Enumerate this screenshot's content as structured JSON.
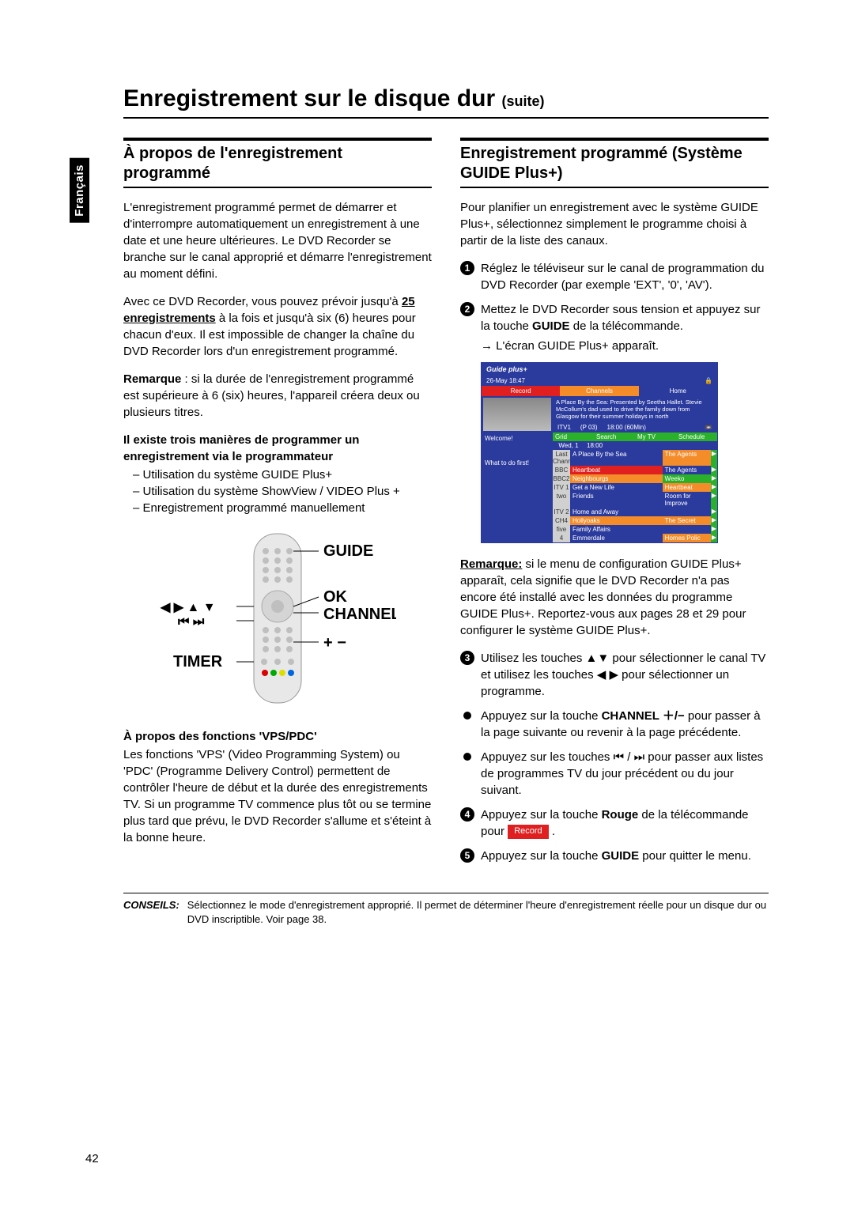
{
  "page_number": "42",
  "language_tab": "Français",
  "main_title": "Enregistrement sur le disque dur",
  "main_title_suffix": "(suite)",
  "colors": {
    "text": "#000000",
    "background": "#ffffff",
    "accent_blue": "#2a3a9d",
    "accent_red": "#e02020",
    "accent_orange": "#f48c2a",
    "accent_green": "#2ab02a"
  },
  "left": {
    "section_title": "À propos de l'enregistrement programmé",
    "para1": "L'enregistrement programmé permet de démarrer et d'interrompre automatiquement un enregistrement à une date et une heure ultérieures. Le DVD Recorder se branche sur le canal approprié et démarre l'enregistrement au moment défini.",
    "para2_pre": "Avec ce DVD Recorder, vous pouvez prévoir jusqu'à ",
    "para2_bold": "25 enregistrements",
    "para2_post": " à la fois et jusqu'à six (6) heures pour chacun d'eux. Il est impossible de changer la chaîne du DVD Recorder lors d'un enregistrement programmé.",
    "remark_label": "Remarque",
    "remark_text": " :  si la durée de l'enregistrement programmé est supérieure à 6 (six) heures, l'appareil créera deux ou plusieurs titres.",
    "methods_title": "Il existe trois manières de programmer un enregistrement via le programmateur",
    "methods": [
      "Utilisation du système GUIDE Plus+",
      "Utilisation du système ShowView / VIDEO Plus +",
      "Enregistrement programmé manuellement"
    ],
    "remote_labels": {
      "guide": "GUIDE",
      "ok": "OK",
      "channel": "CHANNEL",
      "timer": "TIMER",
      "arrows": "◀ ▶ ▲ ▼",
      "skip": "⏮ ⏭",
      "plusminus": "+ −"
    },
    "vps_title": "À propos des fonctions 'VPS/PDC'",
    "vps_text": "Les fonctions 'VPS' (Video Programming System) ou 'PDC' (Programme Delivery Control) permettent de contrôler l'heure de début et la durée des enregistrements TV. Si un programme TV commence plus tôt ou se termine plus tard que prévu, le DVD Recorder s'allume et s'éteint à la bonne heure."
  },
  "right": {
    "section_title": "Enregistrement programmé (Système GUIDE Plus+)",
    "intro": "Pour planifier un enregistrement avec le système GUIDE Plus+, sélectionnez simplement le programme choisi à partir de la liste des canaux.",
    "step1": "Réglez le téléviseur sur le canal de programmation du DVD Recorder (par exemple 'EXT', '0', 'AV').",
    "step2_pre": "Mettez le DVD Recorder sous tension et appuyez sur la touche ",
    "step2_bold": "GUIDE",
    "step2_post": " de la télécommande.",
    "step2_sub": "L'écran GUIDE Plus+ apparaît.",
    "guide_shot": {
      "brand": "Guide plus+",
      "date": "26-May  18:47",
      "tabs": {
        "record": "Record",
        "channels": "Channels",
        "home": "Home"
      },
      "prog_desc": "A Place By the Sea: Presented by Seetha Hallet. Stevie McCollum's dad used to drive the family down from Glasgow for their summer holidays in north",
      "info_row": {
        "ch": "ITV1",
        "pid": "(P 03)",
        "time": "18:00 (60Min)"
      },
      "header": [
        "Grid",
        "Search",
        "My TV",
        "Schedule"
      ],
      "time_row": {
        "day": "Wed, 1",
        "t1": "18:00"
      },
      "left_panels": [
        "Welcome!",
        "What to do first!"
      ],
      "rows": [
        {
          "ch": "Last Channel",
          "p1": "A Place By the Sea",
          "p2": "The Agents",
          "c1": "bg-blue",
          "c2": "bg-orange"
        },
        {
          "ch": "BBC",
          "p1": "Heartbeat",
          "p2": "The Agents",
          "c1": "bg-red",
          "c2": "bg-blue"
        },
        {
          "ch": "BBC2",
          "p1": "Neighbourgs",
          "p2": "Weeko",
          "c1": "bg-orange",
          "c2": "bg-green"
        },
        {
          "ch": "ITV 1",
          "p1": "Get a New Life",
          "p2": "Heartbeat",
          "c1": "bg-blue",
          "c2": "bg-orange"
        },
        {
          "ch": "two",
          "p1": "Friends",
          "p2": "Room for Improve",
          "c1": "bg-blue",
          "c2": "bg-blue"
        },
        {
          "ch": "ITV 2",
          "p1": "Home and Away",
          "p2": "",
          "c1": "bg-blue",
          "c2": "bg-blue"
        },
        {
          "ch": "CH4",
          "p1": "Hollyoaks",
          "p2": "The Secret",
          "c1": "bg-orange",
          "c2": "bg-orange"
        },
        {
          "ch": "five",
          "p1": "Family Affairs",
          "p2": "",
          "c1": "bg-blue",
          "c2": "bg-blue"
        },
        {
          "ch": "4",
          "p1": "Emmerdale",
          "p2": "Homes  Polic",
          "c1": "bg-blue",
          "c2": "bg-orange"
        }
      ]
    },
    "note_label": "Remarque:",
    "note_text": " si le menu de configuration GUIDE Plus+ apparaît, cela signifie que le DVD Recorder n'a pas encore été installé avec les données du programme GUIDE Plus+. Reportez-vous aux pages 28 et 29 pour configurer le système GUIDE Plus+.",
    "step3": "Utilisez les touches ▲▼ pour sélectionner le canal TV et utilisez les touches ◀ ▶ pour sélectionner un programme.",
    "bullet1_pre": "Appuyez sur la touche ",
    "bullet1_bold": "CHANNEL ＋/−",
    "bullet1_post": " pour passer à la page suivante ou revenir à la page précédente.",
    "bullet2": "Appuyez sur les touches ⏮ / ⏭ pour passer aux listes de programmes TV du jour précédent ou du jour suivant.",
    "step4_pre": "Appuyez sur la touche ",
    "step4_bold": "Rouge",
    "step4_post": " de la télécommande pour ",
    "record_badge": "Record",
    "step5_pre": "Appuyez sur la touche ",
    "step5_bold": "GUIDE",
    "step5_post": " pour quitter le menu."
  },
  "footer": {
    "label": "CONSEILS:",
    "text": "Sélectionnez le mode d'enregistrement approprié. Il permet de déterminer l'heure d'enregistrement réelle pour un disque dur ou DVD inscriptible. Voir page 38."
  }
}
